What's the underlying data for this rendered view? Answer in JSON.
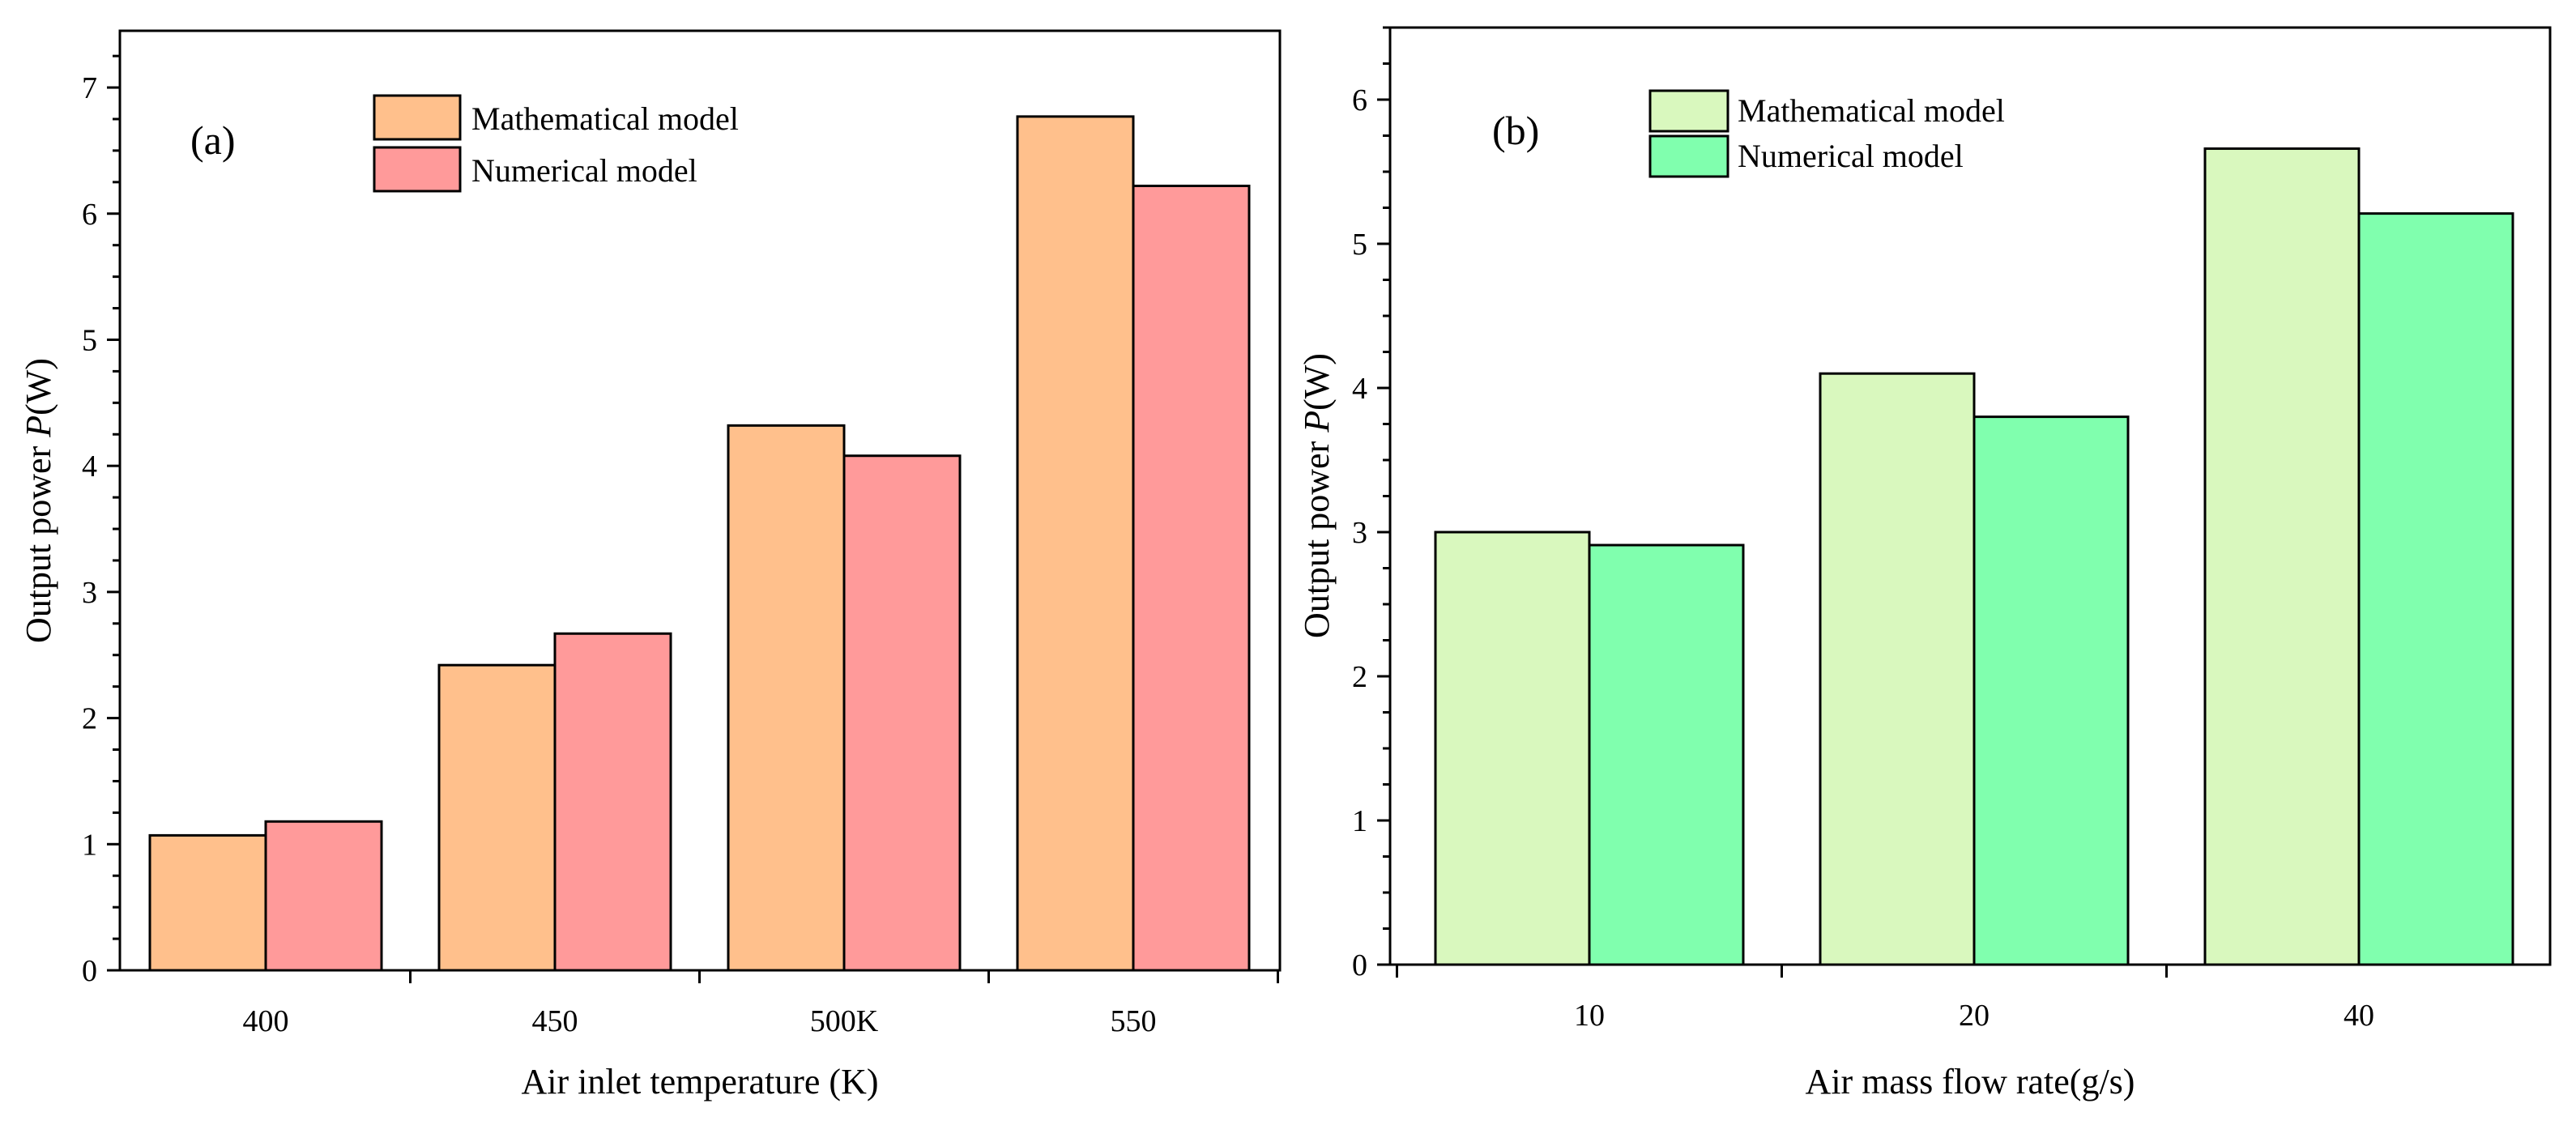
{
  "chart_data": [
    {
      "type": "bar",
      "panel_label": "(a)",
      "categories": [
        "400",
        "450",
        "500K",
        "550"
      ],
      "series": [
        {
          "name": "Mathematical model",
          "color": "#FFC08C",
          "values": [
            1.07,
            2.42,
            4.32,
            6.77
          ]
        },
        {
          "name": "Numerical model",
          "color": "#FF9A9A",
          "values": [
            1.18,
            2.67,
            4.08,
            6.22
          ]
        }
      ],
      "xlabel": "Air inlet temperature (K)",
      "ylabel_prefix": "Output power ",
      "ylabel_symbol": "P",
      "ylabel_suffix": "(W)",
      "ylim": [
        0,
        7.45
      ],
      "yticks": [
        "0",
        "1",
        "2",
        "3",
        "4",
        "5",
        "6",
        "7"
      ],
      "legend_position": "top-center"
    },
    {
      "type": "bar",
      "panel_label": "(b)",
      "categories": [
        "10",
        "20",
        "40"
      ],
      "series": [
        {
          "name": "Mathematical model",
          "color": "#D9F8BE",
          "values": [
            3.0,
            4.1,
            5.66
          ]
        },
        {
          "name": "Numerical model",
          "color": "#80FFAE",
          "values": [
            2.91,
            3.8,
            5.21
          ]
        }
      ],
      "xlabel": "Air mass flow rate(g/s)",
      "ylabel_prefix": "Output power ",
      "ylabel_symbol": "P",
      "ylabel_suffix": "(W)",
      "ylim": [
        0,
        6.5
      ],
      "yticks": [
        "0",
        "1",
        "2",
        "3",
        "4",
        "5",
        "6"
      ],
      "legend_position": "top-center"
    }
  ]
}
